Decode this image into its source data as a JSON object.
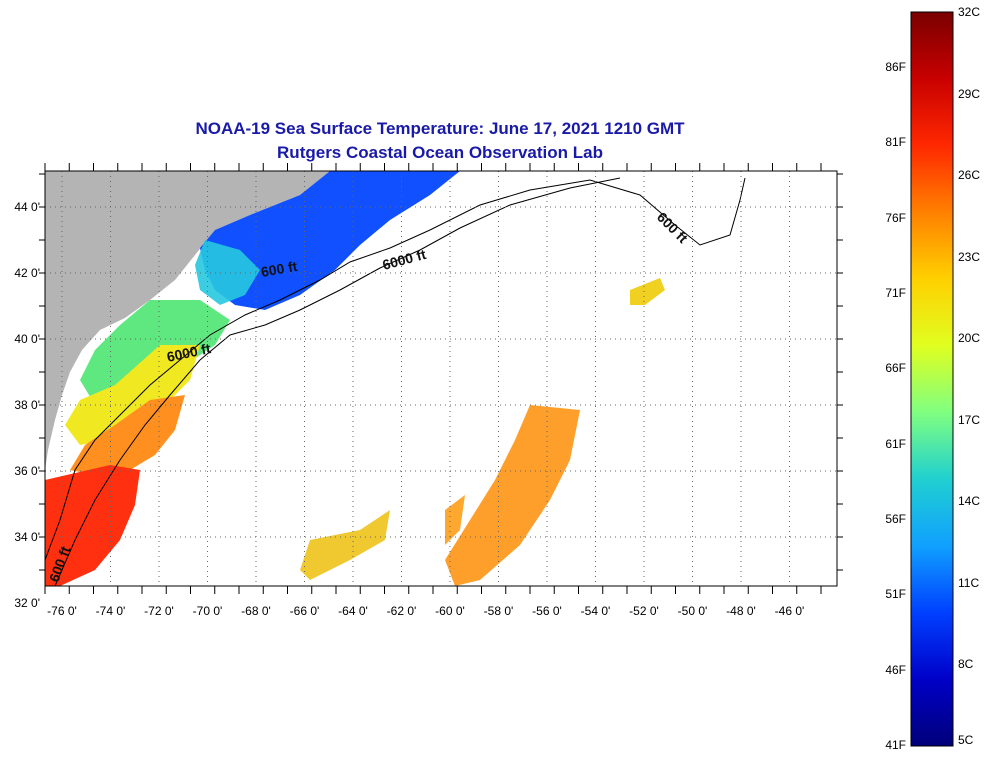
{
  "title": {
    "line1": "NOAA-19 Sea Surface Temperature:  June 17, 2021 1210 GMT",
    "line2": "Rutgers Coastal Ocean Observation Lab"
  },
  "map": {
    "x_ticks": [
      "-76 0'",
      "-74 0'",
      "-72 0'",
      "-70 0'",
      "-68 0'",
      "-66 0'",
      "-64 0'",
      "-62 0'",
      "-60 0'",
      "-58 0'",
      "-56 0'",
      "-54 0'",
      "-52 0'",
      "-50 0'",
      "-48 0'",
      "-46 0'"
    ],
    "y_ticks": [
      "44 0'",
      "42 0'",
      "40 0'",
      "38 0'",
      "36 0'",
      "34 0'",
      "32 0'"
    ],
    "contour_labels": [
      {
        "text": "600 ft"
      },
      {
        "text": "6000 ft"
      },
      {
        "text": "6000 ft"
      },
      {
        "text": "600 ft"
      },
      {
        "text": "600 ft"
      }
    ],
    "colors": {
      "land": "#b4b4b4",
      "ocean_nodata": "#ffffff",
      "title": "#1a1aa8"
    }
  },
  "colorbar": {
    "fahrenheit_labels": [
      "86F",
      "81F",
      "76F",
      "71F",
      "66F",
      "61F",
      "56F",
      "51F",
      "46F",
      "41F"
    ],
    "celsius_labels": [
      "32C",
      "29C",
      "26C",
      "23C",
      "20C",
      "17C",
      "14C",
      "11C",
      "8C",
      "5C"
    ],
    "stops": [
      "#7a0000",
      "#c80000",
      "#ff2800",
      "#ff8000",
      "#ffd000",
      "#e0ff20",
      "#80ff80",
      "#20d0d0",
      "#10a0ff",
      "#0040ff",
      "#0000c8",
      "#00007a"
    ]
  }
}
